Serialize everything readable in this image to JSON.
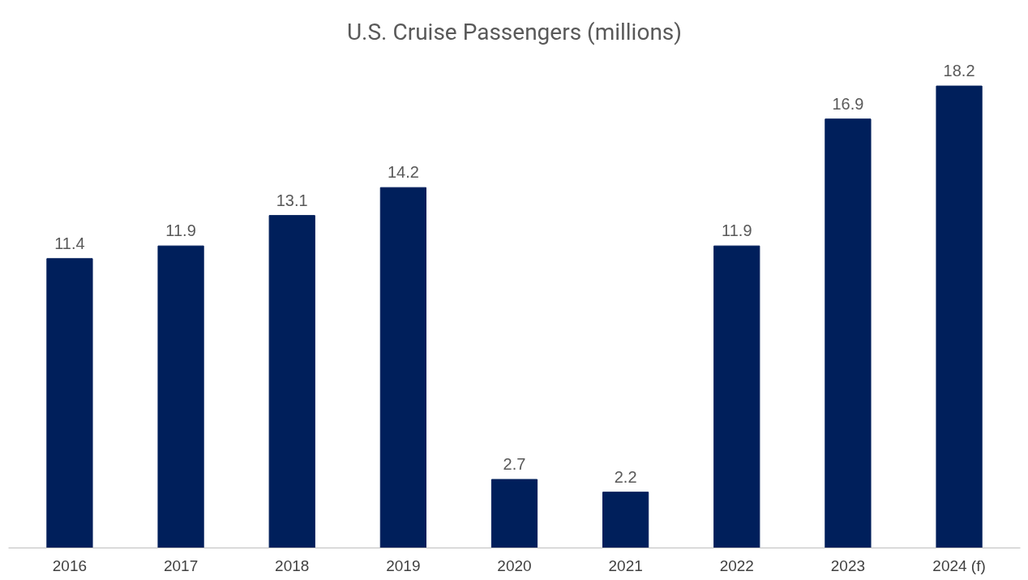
{
  "chart_data": {
    "type": "bar",
    "title": "U.S. Cruise Passengers (millions)",
    "categories": [
      "2016",
      "2017",
      "2018",
      "2019",
      "2020",
      "2021",
      "2022",
      "2023",
      "2024 (f)"
    ],
    "values": [
      11.4,
      11.9,
      13.1,
      14.2,
      2.7,
      2.2,
      11.9,
      16.9,
      18.2
    ],
    "color": "#001f5b",
    "data_labels": true,
    "grid": false
  }
}
